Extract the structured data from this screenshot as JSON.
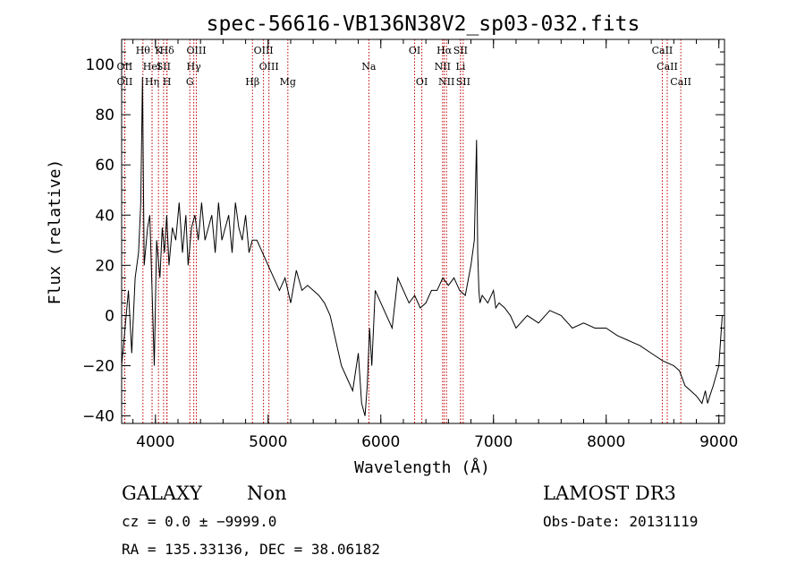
{
  "chart_data": {
    "type": "line",
    "title": "spec-56616-VB136N38V2_sp03-032.fits",
    "xlabel": "Wavelength (Å)",
    "ylabel": "Flux (relative)",
    "xlim": [
      3700,
      9050
    ],
    "ylim": [
      -43,
      110
    ],
    "x_ticks": [
      4000,
      5000,
      6000,
      7000,
      8000,
      9000
    ],
    "y_ticks": [
      -40,
      -20,
      0,
      20,
      40,
      60,
      80,
      100
    ],
    "x_tick_labels": [
      "4000",
      "5000",
      "6000",
      "7000",
      "8000",
      "9000"
    ],
    "y_tick_labels": [
      "−40",
      "−20",
      "0",
      "20",
      "40",
      "60",
      "80",
      "100"
    ],
    "grid": false,
    "series": [
      {
        "color": "#000000",
        "x": [
          3700,
          3730,
          3760,
          3790,
          3820,
          3850,
          3870,
          3885,
          3900,
          3930,
          3950,
          3970,
          3990,
          4010,
          4040,
          4060,
          4080,
          4100,
          4120,
          4150,
          4180,
          4210,
          4240,
          4270,
          4290,
          4320,
          4350,
          4380,
          4410,
          4440,
          4470,
          4500,
          4530,
          4560,
          4590,
          4620,
          4650,
          4680,
          4710,
          4740,
          4770,
          4800,
          4830,
          4860,
          4900,
          4950,
          5000,
          5050,
          5100,
          5150,
          5200,
          5250,
          5300,
          5350,
          5400,
          5450,
          5500,
          5550,
          5600,
          5650,
          5700,
          5750,
          5800,
          5830,
          5860,
          5880,
          5900,
          5920,
          5950,
          6000,
          6050,
          6100,
          6150,
          6200,
          6250,
          6300,
          6350,
          6400,
          6450,
          6500,
          6550,
          6600,
          6650,
          6700,
          6750,
          6800,
          6830,
          6850,
          6860,
          6870,
          6880,
          6900,
          6950,
          7000,
          7020,
          7050,
          7100,
          7150,
          7200,
          7300,
          7400,
          7500,
          7600,
          7700,
          7800,
          7900,
          8000,
          8100,
          8200,
          8300,
          8400,
          8500,
          8600,
          8650,
          8700,
          8750,
          8800,
          8850,
          8880,
          8900,
          8920,
          8950,
          9000,
          9030
        ],
        "y": [
          -20,
          -5,
          10,
          -15,
          15,
          25,
          45,
          95,
          20,
          35,
          40,
          10,
          -20,
          30,
          15,
          35,
          25,
          40,
          20,
          35,
          30,
          45,
          25,
          40,
          20,
          35,
          40,
          30,
          45,
          30,
          35,
          40,
          25,
          45,
          30,
          35,
          40,
          25,
          45,
          35,
          30,
          40,
          25,
          30,
          30,
          25,
          20,
          15,
          10,
          15,
          5,
          18,
          10,
          12,
          10,
          8,
          5,
          0,
          -10,
          -20,
          -25,
          -30,
          -15,
          -35,
          -40,
          -28,
          -5,
          -20,
          10,
          5,
          0,
          -5,
          15,
          10,
          5,
          8,
          3,
          5,
          10,
          10,
          15,
          12,
          15,
          10,
          8,
          20,
          30,
          70,
          25,
          10,
          5,
          8,
          5,
          10,
          3,
          5,
          3,
          0,
          -5,
          0,
          -3,
          2,
          0,
          -5,
          -3,
          -5,
          -5,
          -8,
          -10,
          -12,
          -15,
          -18,
          -20,
          -22,
          -28,
          -30,
          -32,
          -35,
          -30,
          -35,
          -32,
          -28,
          -20,
          0
        ]
      }
    ],
    "emission_lines": [
      {
        "wavelength": 3727,
        "label": "OII",
        "row": 2
      },
      {
        "wavelength": 3728,
        "label": "OII",
        "row": 3
      },
      {
        "wavelength": 3889,
        "label": "Hθ",
        "row": 1
      },
      {
        "wavelength": 3970,
        "label": "HeI",
        "row": 2
      },
      {
        "wavelength": 3970,
        "label": "Hη",
        "row": 3
      },
      {
        "wavelength": 4027,
        "label": "K",
        "row": 1
      },
      {
        "wavelength": 4072,
        "label": "SII",
        "row": 2
      },
      {
        "wavelength": 4102,
        "label": "Hδ",
        "row": 1
      },
      {
        "wavelength": 4102,
        "label": "H",
        "row": 3
      },
      {
        "wavelength": 4305,
        "label": "G",
        "row": 3
      },
      {
        "wavelength": 4340,
        "label": "Hγ",
        "row": 2
      },
      {
        "wavelength": 4363,
        "label": "OIII",
        "row": 1
      },
      {
        "wavelength": 4861,
        "label": "Hβ",
        "row": 3
      },
      {
        "wavelength": 4959,
        "label": "OIII",
        "row": 1
      },
      {
        "wavelength": 5007,
        "label": "OIII",
        "row": 2
      },
      {
        "wavelength": 5175,
        "label": "Mg",
        "row": 3
      },
      {
        "wavelength": 5894,
        "label": "Na",
        "row": 2
      },
      {
        "wavelength": 6300,
        "label": "OI",
        "row": 1
      },
      {
        "wavelength": 6364,
        "label": "OI",
        "row": 3
      },
      {
        "wavelength": 6548,
        "label": "NII",
        "row": 2
      },
      {
        "wavelength": 6563,
        "label": "Hα",
        "row": 1
      },
      {
        "wavelength": 6583,
        "label": "NII",
        "row": 3
      },
      {
        "wavelength": 6707,
        "label": "SII",
        "row": 1
      },
      {
        "wavelength": 6708,
        "label": "Li",
        "row": 2
      },
      {
        "wavelength": 6731,
        "label": "SII",
        "row": 3
      },
      {
        "wavelength": 8498,
        "label": "CaII",
        "row": 1
      },
      {
        "wavelength": 8542,
        "label": "CaII",
        "row": 2
      },
      {
        "wavelength": 8662,
        "label": "CaII",
        "row": 3
      }
    ]
  },
  "info": {
    "object_class": "GALAXY",
    "subclass": "Non",
    "survey": "LAMOST DR3",
    "redshift": "cz = 0.0 ± −9999.0",
    "obs_date": "Obs-Date: 20131119",
    "coords": "RA = 135.33136, DEC =  38.06182"
  },
  "colors": {
    "line_marker": "#c00000",
    "spectrum": "#000000"
  }
}
